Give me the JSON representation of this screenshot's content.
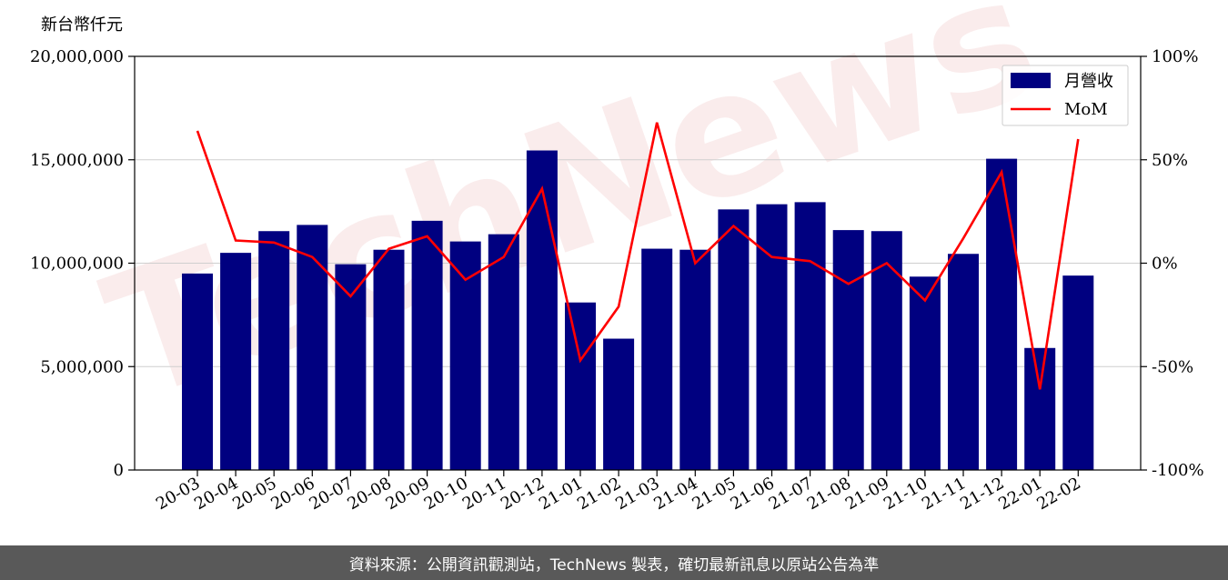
{
  "chart_data": {
    "type": "bar",
    "unit_label": "新台幣仟元",
    "categories": [
      "20-03",
      "20-04",
      "20-05",
      "20-06",
      "20-07",
      "20-08",
      "20-09",
      "20-10",
      "20-11",
      "20-12",
      "21-01",
      "21-02",
      "21-03",
      "21-04",
      "21-05",
      "21-06",
      "21-07",
      "21-08",
      "21-09",
      "21-10",
      "21-11",
      "21-12",
      "22-01",
      "22-02"
    ],
    "series": [
      {
        "name": "月營收",
        "kind": "bar",
        "axis": "left",
        "color": "#000080",
        "values": [
          9500000,
          10500000,
          11550000,
          11850000,
          9950000,
          10650000,
          12050000,
          11050000,
          11400000,
          15450000,
          8100000,
          6350000,
          10700000,
          10650000,
          12600000,
          12850000,
          12950000,
          11600000,
          11550000,
          9350000,
          10450000,
          15050000,
          5900000,
          9400000
        ]
      },
      {
        "name": "MoM",
        "kind": "line",
        "axis": "right",
        "color": "#ff0000",
        "values": [
          64,
          11,
          10,
          3,
          -16,
          7,
          13,
          -8,
          3,
          36,
          -47,
          -21,
          68,
          0,
          18,
          3,
          1,
          -10,
          0,
          -18,
          12,
          44,
          -61,
          60
        ]
      }
    ],
    "y_left": {
      "min": 0,
      "max": 20000000,
      "ticks": [
        0,
        5000000,
        10000000,
        15000000,
        20000000
      ],
      "tick_labels": [
        "0",
        "5,000,000",
        "10,000,000",
        "15,000,000",
        "20,000,000"
      ]
    },
    "y_right": {
      "min": -100,
      "max": 100,
      "ticks": [
        -100,
        -50,
        0,
        50,
        100
      ],
      "tick_labels": [
        "-100%",
        "-50%",
        "0%",
        "50%",
        "100%"
      ]
    },
    "grid": true,
    "legend": {
      "placement": "top-right"
    },
    "watermark": "TechNews"
  },
  "footer": {
    "text": "資料來源：公開資訊觀測站，TechNews 製表，確切最新訊息以原站公告為準"
  }
}
